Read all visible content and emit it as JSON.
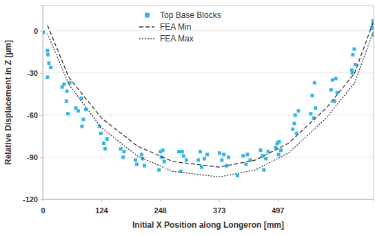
{
  "chart_data": {
    "type": "scatter",
    "x_label": "Initial X Position along Longeron [mm]",
    "y_label": "Relative Displacement in Z [µm]",
    "xlim": [
      0,
      700
    ],
    "ylim": [
      -120,
      18
    ],
    "xticks": [
      0,
      124,
      248,
      373,
      497
    ],
    "yticks": [
      -120,
      -90,
      -60,
      -30,
      0
    ],
    "grid": true,
    "legend": "top",
    "series": [
      {
        "name": "Top Base Blocks",
        "type": "scatter",
        "marker": "square",
        "color": "#33b5e5",
        "x": [
          1,
          10,
          11,
          13,
          10,
          17,
          41,
          45,
          51,
          53,
          50,
          57,
          70,
          75,
          82,
          83,
          86,
          91,
          120,
          123,
          129,
          132,
          136,
          165,
          170,
          172,
          196,
          199,
          209,
          211,
          215,
          246,
          249,
          251,
          254,
          257,
          288,
          292,
          295,
          298,
          304,
          329,
          333,
          336,
          342,
          348,
          374,
          379,
          383,
          389,
          393,
          412,
          424,
          430,
          433,
          439,
          461,
          465,
          468,
          472,
          477,
          493,
          496,
          499,
          500,
          504,
          529,
          532,
          534,
          537,
          541,
          567,
          570,
          573,
          575,
          577,
          610,
          613,
          617,
          620,
          623,
          654,
          656,
          659,
          661,
          655,
          696,
          699,
          700,
          699
        ],
        "values": [
          -1,
          -14,
          -17,
          -23,
          -33,
          -26,
          -40,
          -38,
          -43,
          -59,
          -50,
          -37,
          -55,
          -57,
          -48,
          -68,
          -63,
          -56,
          -68,
          -73,
          -80,
          -84,
          -77,
          -84,
          -90,
          -86,
          -92,
          -95,
          -88,
          -91,
          -96,
          -99,
          -86,
          -90,
          -85,
          -93,
          -86,
          -100,
          -86,
          -89,
          -92,
          -92,
          -86,
          -97,
          -91,
          -88,
          -87,
          -92,
          -88,
          -96,
          -90,
          -103,
          -89,
          -95,
          -88,
          -92,
          -85,
          -89,
          -99,
          -91,
          -86,
          -83,
          -80,
          -88,
          -79,
          -85,
          -70,
          -66,
          -60,
          -73,
          -57,
          -59,
          -46,
          -62,
          -37,
          -55,
          -42,
          -35,
          -50,
          -34,
          -44,
          -28,
          -17,
          -13,
          -24,
          -30,
          2,
          5,
          -3,
          7
        ]
      },
      {
        "name": "FEA Min",
        "type": "line",
        "line_style": "dashed",
        "color": "#333333",
        "x": [
          10,
          55,
          124,
          200,
          275,
          373,
          450,
          520,
          600,
          660,
          700
        ],
        "values": [
          4,
          -33,
          -62,
          -82,
          -93,
          -97,
          -92,
          -80,
          -55,
          -30,
          7
        ]
      },
      {
        "name": "FEA Max",
        "type": "line",
        "line_style": "dotted",
        "color": "#333333",
        "x": [
          10,
          55,
          124,
          200,
          275,
          373,
          450,
          520,
          600,
          660,
          700
        ],
        "values": [
          -2,
          -38,
          -69,
          -89,
          -100,
          -104,
          -99,
          -87,
          -62,
          -37,
          0
        ]
      }
    ]
  }
}
